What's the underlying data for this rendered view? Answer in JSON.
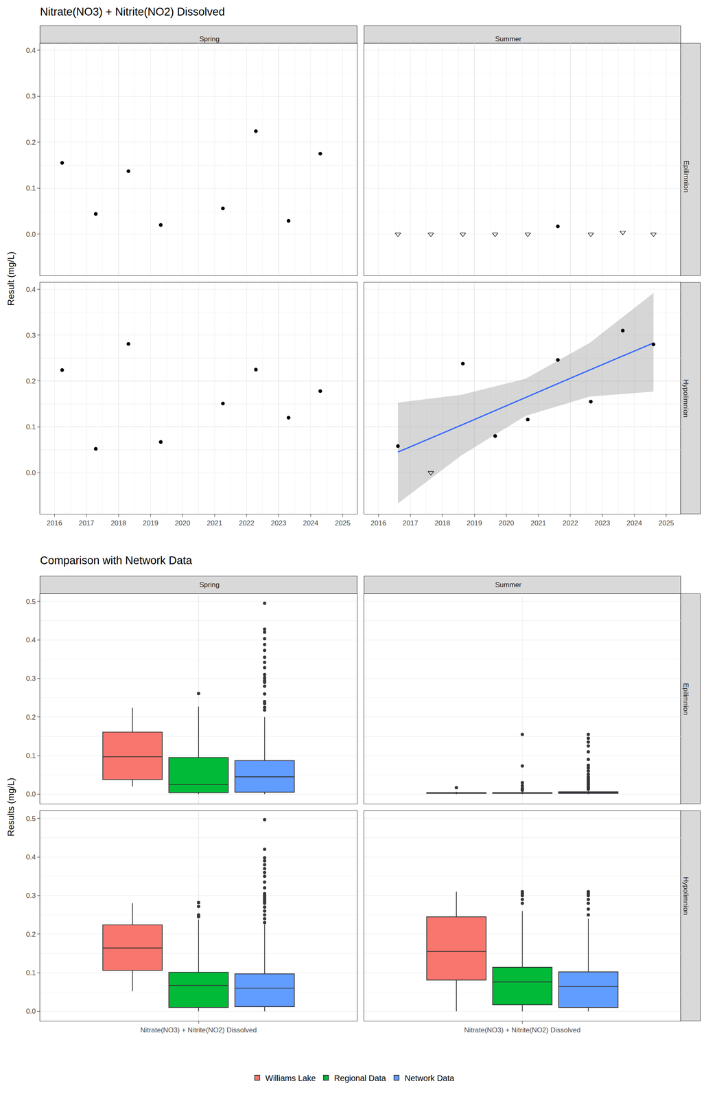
{
  "chart_data": [
    {
      "type": "scatter",
      "title": "Nitrate(NO3) + Nitrite(NO2) Dissolved",
      "y_label": "Result (mg/L)",
      "columns": [
        "Spring",
        "Summer"
      ],
      "rows": [
        "Epilimnion",
        "Hypolimnion"
      ],
      "xlim": [
        2015.55,
        2025.45
      ],
      "xticks": [
        2016,
        2017,
        2018,
        2019,
        2020,
        2021,
        2022,
        2023,
        2024,
        2025
      ],
      "ylim": [
        -0.09,
        0.415
      ],
      "yticks": [
        {
          "value": 0,
          "label": "0.0"
        },
        {
          "value": 0.1,
          "label": "0.1"
        },
        {
          "value": 0.2,
          "label": "0.2"
        },
        {
          "value": 0.3,
          "label": "0.3"
        },
        {
          "value": 0.4,
          "label": "0.4"
        }
      ],
      "grid": true,
      "color": "#000000",
      "panels": [
        {
          "column": "Spring",
          "row": "Epilimnion",
          "series": [
            {
              "marker": "circle",
              "x": [
                2016.24,
                2017.29,
                2018.31,
                2019.32,
                2021.26,
                2022.29,
                2023.31,
                2024.3
              ],
              "values": [
                0.155,
                0.044,
                0.137,
                0.02,
                0.056,
                0.224,
                0.029,
                0.175
              ]
            }
          ]
        },
        {
          "column": "Summer",
          "row": "Epilimnion",
          "series": [
            {
              "marker": "circle",
              "x": [
                2021.61
              ],
              "values": [
                0.017
              ]
            },
            {
              "marker": "triangle-down-open",
              "x": [
                2016.61,
                2017.64,
                2018.64,
                2019.65,
                2020.67,
                2022.64,
                2023.64,
                2024.6
              ],
              "values": [
                0,
                0,
                0,
                0,
                0,
                0,
                0.004,
                0
              ]
            }
          ]
        },
        {
          "column": "Spring",
          "row": "Hypolimnion",
          "series": [
            {
              "marker": "circle",
              "x": [
                2016.24,
                2017.29,
                2018.31,
                2019.32,
                2021.26,
                2022.29,
                2023.31,
                2024.3
              ],
              "values": [
                0.224,
                0.052,
                0.281,
                0.067,
                0.151,
                0.225,
                0.12,
                0.178
              ]
            }
          ]
        },
        {
          "column": "Summer",
          "row": "Hypolimnion",
          "series": [
            {
              "type": "line",
              "color": "#3366FF",
              "x": [
                2016.61,
                2018.6,
                2020.6,
                2022.6,
                2024.6
              ],
              "values": [
                0.045,
                0.104,
                0.164,
                0.224,
                0.283
              ],
              "lower": [
                -0.067,
                0.038,
                0.124,
                0.166,
                0.177
              ],
              "upper": [
                0.153,
                0.17,
                0.205,
                0.283,
                0.392
              ]
            },
            {
              "marker": "circle",
              "x": [
                2016.61,
                2018.64,
                2019.65,
                2020.67,
                2021.61,
                2022.64,
                2023.64,
                2024.6
              ],
              "values": [
                0.058,
                0.238,
                0.08,
                0.116,
                0.246,
                0.155,
                0.31,
                0.28
              ]
            },
            {
              "marker": "triangle-down-open",
              "x": [
                2017.64
              ],
              "values": [
                0
              ]
            }
          ]
        }
      ]
    },
    {
      "type": "box",
      "title": "Comparison with Network Data",
      "y_label": "Results (mg/L)",
      "categories": [
        "Nitrate(NO3) + Nitrite(NO2) Dissolved"
      ],
      "columns": [
        "Spring",
        "Summer"
      ],
      "rows": [
        "Epilimnion",
        "Hypolimnion"
      ],
      "ylim": [
        -0.025,
        0.52
      ],
      "yticks": [
        {
          "value": 0,
          "label": "0.0"
        },
        {
          "value": 0.1,
          "label": "0.1"
        },
        {
          "value": 0.2,
          "label": "0.2"
        },
        {
          "value": 0.3,
          "label": "0.3"
        },
        {
          "value": 0.4,
          "label": "0.4"
        },
        {
          "value": 0.5,
          "label": "0.5"
        }
      ],
      "grid": true,
      "legend": "bottom",
      "series": [
        {
          "name": "Williams Lake",
          "color": "#F8766D"
        },
        {
          "name": "Regional Data",
          "color": "#00BA38"
        },
        {
          "name": "Network Data",
          "color": "#619CFF"
        }
      ],
      "panels": [
        {
          "column": "Spring",
          "row": "Epilimnion",
          "boxes": [
            {
              "q1": 0.038,
              "median": 0.097,
              "q3": 0.161,
              "lowerfence": 0.02,
              "upperfence": 0.224,
              "outliers": []
            },
            {
              "q1": 0.004,
              "median": 0.025,
              "q3": 0.095,
              "lowerfence": 0.0,
              "upperfence": 0.227,
              "outliers": [
                0.261
              ]
            },
            {
              "q1": 0.005,
              "median": 0.045,
              "q3": 0.087,
              "lowerfence": 0.0,
              "upperfence": 0.2,
              "outliers": [
                0.495,
                0.428,
                0.42,
                0.403,
                0.388,
                0.373,
                0.355,
                0.342,
                0.328,
                0.31,
                0.302,
                0.295,
                0.29,
                0.28,
                0.26,
                0.24,
                0.235,
                0.225,
                0.218
              ]
            }
          ]
        },
        {
          "column": "Summer",
          "row": "Epilimnion",
          "boxes": [
            {
              "q1": 0.002,
              "median": 0.003,
              "q3": 0.004,
              "lowerfence": 0.0,
              "upperfence": 0.006,
              "outliers": [
                0.017
              ]
            },
            {
              "q1": 0.002,
              "median": 0.003,
              "q3": 0.004,
              "lowerfence": 0.0,
              "upperfence": 0.008,
              "outliers": [
                0.155,
                0.073,
                0.03,
                0.022,
                0.015,
                0.012,
                0.01
              ]
            },
            {
              "q1": 0.002,
              "median": 0.004,
              "q3": 0.006,
              "lowerfence": 0.0,
              "upperfence": 0.01,
              "outliers": [
                0.155,
                0.145,
                0.135,
                0.125,
                0.11,
                0.09,
                0.075,
                0.068,
                0.06,
                0.052,
                0.045,
                0.04,
                0.035,
                0.03,
                0.025,
                0.02,
                0.016,
                0.013
              ]
            }
          ]
        },
        {
          "column": "Spring",
          "row": "Hypolimnion",
          "boxes": [
            {
              "q1": 0.106,
              "median": 0.164,
              "q3": 0.224,
              "lowerfence": 0.052,
              "upperfence": 0.28,
              "outliers": []
            },
            {
              "q1": 0.01,
              "median": 0.067,
              "q3": 0.101,
              "lowerfence": 0.0,
              "upperfence": 0.238,
              "outliers": [
                0.282,
                0.272,
                0.25,
                0.245
              ]
            },
            {
              "q1": 0.012,
              "median": 0.06,
              "q3": 0.097,
              "lowerfence": 0.0,
              "upperfence": 0.225,
              "outliers": [
                0.497,
                0.42,
                0.398,
                0.39,
                0.38,
                0.37,
                0.36,
                0.35,
                0.335,
                0.32,
                0.305,
                0.3,
                0.295,
                0.29,
                0.285,
                0.28,
                0.27,
                0.26,
                0.25,
                0.24,
                0.23
              ]
            }
          ]
        },
        {
          "column": "Summer",
          "row": "Hypolimnion",
          "boxes": [
            {
              "q1": 0.081,
              "median": 0.155,
              "q3": 0.245,
              "lowerfence": 0.0,
              "upperfence": 0.31,
              "outliers": []
            },
            {
              "q1": 0.017,
              "median": 0.076,
              "q3": 0.114,
              "lowerfence": 0.0,
              "upperfence": 0.26,
              "outliers": [
                0.31,
                0.305,
                0.3,
                0.29,
                0.28
              ]
            },
            {
              "q1": 0.01,
              "median": 0.064,
              "q3": 0.102,
              "lowerfence": 0.0,
              "upperfence": 0.24,
              "outliers": [
                0.31,
                0.305,
                0.3,
                0.29,
                0.28,
                0.265,
                0.25
              ]
            }
          ]
        }
      ]
    }
  ]
}
